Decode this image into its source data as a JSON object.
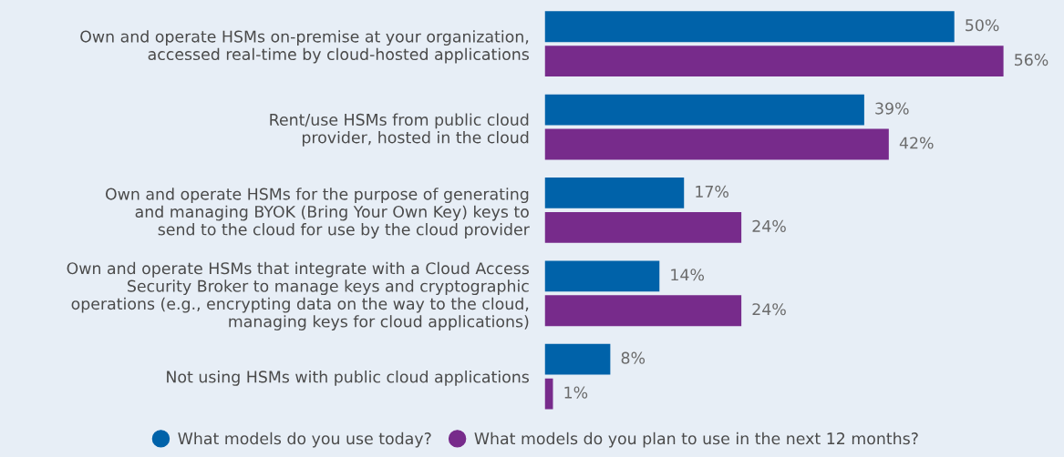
{
  "chart_data": {
    "type": "bar",
    "orientation": "horizontal",
    "categories": [
      "Own and operate HSMs on-premise at your organization,\naccessed real-time by cloud-hosted applications",
      "Rent/use HSMs from public cloud\nprovider, hosted in the cloud",
      "Own and operate HSMs for the purpose of generating\nand managing BYOK (Bring Your Own Key) keys to\nsend to the cloud for use by the cloud provider",
      "Own and operate HSMs that integrate with a Cloud Access\nSecurity Broker to manage keys and cryptographic\noperations (e.g., encrypting data on the way to the cloud,\nmanaging keys for cloud applications)",
      "Not using HSMs with public cloud applications"
    ],
    "series": [
      {
        "name": "What models do you use today?",
        "color": "#0062a9",
        "values": [
          50,
          39,
          17,
          14,
          8
        ],
        "value_labels": [
          "50%",
          "39%",
          "17%",
          "14%",
          "8%"
        ]
      },
      {
        "name": "What models do you plan to use in the next 12 months?",
        "color": "#772b8b",
        "values": [
          56,
          42,
          24,
          24,
          1
        ],
        "value_labels": [
          "56%",
          "42%",
          "24%",
          "24%",
          "1%"
        ]
      }
    ],
    "legend": "bottom",
    "marker": "circle",
    "tick_labels": "y"
  }
}
